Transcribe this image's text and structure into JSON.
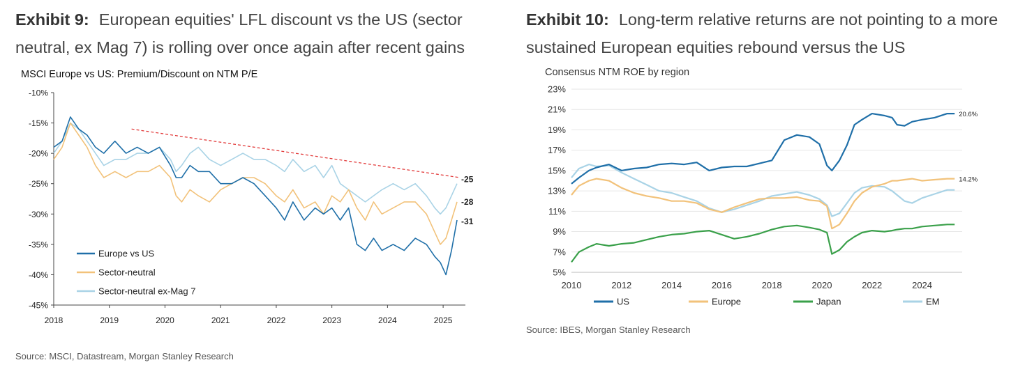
{
  "exhibit9": {
    "label": "Exhibit 9:",
    "title_line1": "European equities' LFL discount vs the US (sector",
    "title_line2": "neutral, ex Mag 7) is rolling over once again after recent gains",
    "source": "Source: MSCI, Datastream, Morgan Stanley Research"
  },
  "exhibit10": {
    "label": "Exhibit 10:",
    "title_line1": "Long-term relative returns are not pointing to a more",
    "title_line2": "sustained European equities rebound versus the US",
    "source": "Source: IBES, Morgan Stanley Research"
  },
  "colors": {
    "us": "#1f6fa8",
    "europe": "#f2c27a",
    "japan": "#3aa04a",
    "em": "#a9d3e6",
    "trend": "#e23b3b"
  },
  "chart_data": [
    {
      "type": "line",
      "title": "MSCI Europe vs US: Premium/Discount on NTM P/E",
      "xlabel": "",
      "ylabel": "",
      "xlim": [
        2018,
        2025.4
      ],
      "ylim": [
        -45,
        -10
      ],
      "y_ticks": [
        -10,
        -15,
        -20,
        -25,
        -30,
        -35,
        -40,
        -45
      ],
      "y_tick_labels": [
        "-10%",
        "-15%",
        "-20%",
        "-25%",
        "-30%",
        "-35%",
        "-40%",
        "-45%"
      ],
      "x_ticks": [
        2018,
        2019,
        2020,
        2021,
        2022,
        2023,
        2024,
        2025
      ],
      "x_tick_labels": [
        "2018",
        "2019",
        "2020",
        "2021",
        "2022",
        "2023",
        "2024",
        "2025"
      ],
      "legend_position": "bottom-left",
      "series": [
        {
          "name": "Europe vs US",
          "color": "#1f6fa8",
          "end_label": "-31",
          "x": [
            2018.0,
            2018.15,
            2018.3,
            2018.45,
            2018.6,
            2018.75,
            2018.9,
            2019.1,
            2019.3,
            2019.5,
            2019.7,
            2019.9,
            2020.1,
            2020.2,
            2020.3,
            2020.45,
            2020.6,
            2020.8,
            2021.0,
            2021.2,
            2021.4,
            2021.6,
            2021.8,
            2022.0,
            2022.15,
            2022.3,
            2022.5,
            2022.7,
            2022.85,
            2023.0,
            2023.15,
            2023.3,
            2023.45,
            2023.6,
            2023.75,
            2023.9,
            2024.1,
            2024.3,
            2024.5,
            2024.7,
            2024.85,
            2024.95,
            2025.05,
            2025.15,
            2025.25
          ],
          "values": [
            -19,
            -18,
            -14,
            -16,
            -17,
            -19,
            -20,
            -18,
            -20,
            -19,
            -20,
            -19,
            -22,
            -24,
            -24,
            -22,
            -23,
            -23,
            -25,
            -25,
            -24,
            -25,
            -27,
            -29,
            -31,
            -28,
            -31,
            -29,
            -30,
            -29,
            -31,
            -29,
            -35,
            -36,
            -34,
            -36,
            -35,
            -36,
            -34,
            -35,
            -37,
            -38,
            -40,
            -36,
            -31
          ]
        },
        {
          "name": "Sector-neutral",
          "color": "#f2c27a",
          "end_label": "-28",
          "x": [
            2018.0,
            2018.15,
            2018.3,
            2018.45,
            2018.6,
            2018.75,
            2018.9,
            2019.1,
            2019.3,
            2019.5,
            2019.7,
            2019.9,
            2020.1,
            2020.2,
            2020.3,
            2020.45,
            2020.6,
            2020.8,
            2021.0,
            2021.2,
            2021.4,
            2021.6,
            2021.8,
            2022.0,
            2022.15,
            2022.3,
            2022.5,
            2022.7,
            2022.85,
            2023.0,
            2023.15,
            2023.3,
            2023.45,
            2023.6,
            2023.75,
            2023.9,
            2024.1,
            2024.3,
            2024.5,
            2024.7,
            2024.85,
            2024.95,
            2025.05,
            2025.15,
            2025.25
          ],
          "values": [
            -21,
            -19,
            -15,
            -17,
            -19,
            -22,
            -24,
            -23,
            -24,
            -23,
            -23,
            -22,
            -24,
            -27,
            -28,
            -26,
            -27,
            -28,
            -26,
            -25,
            -24,
            -24,
            -25,
            -27,
            -28,
            -26,
            -29,
            -28,
            -30,
            -27,
            -28,
            -26,
            -29,
            -31,
            -28,
            -30,
            -29,
            -28,
            -28,
            -30,
            -33,
            -35,
            -34,
            -31,
            -28
          ]
        },
        {
          "name": "Sector-neutral ex-Mag 7",
          "color": "#a9d3e6",
          "end_label": "-25",
          "x": [
            2018.0,
            2018.15,
            2018.3,
            2018.45,
            2018.6,
            2018.75,
            2018.9,
            2019.1,
            2019.3,
            2019.5,
            2019.7,
            2019.9,
            2020.1,
            2020.2,
            2020.3,
            2020.45,
            2020.6,
            2020.8,
            2021.0,
            2021.2,
            2021.4,
            2021.6,
            2021.8,
            2022.0,
            2022.15,
            2022.3,
            2022.5,
            2022.7,
            2022.85,
            2023.0,
            2023.15,
            2023.3,
            2023.45,
            2023.6,
            2023.75,
            2023.9,
            2024.1,
            2024.3,
            2024.5,
            2024.7,
            2024.85,
            2024.95,
            2025.05,
            2025.15,
            2025.25
          ],
          "values": [
            -20,
            -18,
            -15,
            -16,
            -18,
            -20,
            -22,
            -21,
            -21,
            -20,
            -20,
            -19,
            -21,
            -23,
            -22,
            -20,
            -19,
            -21,
            -22,
            -21,
            -20,
            -21,
            -21,
            -22,
            -23,
            -21,
            -23,
            -22,
            -24,
            -22,
            -25,
            -26,
            -27,
            -28,
            -27,
            -26,
            -25,
            -26,
            -25,
            -27,
            -29,
            -30,
            -29,
            -27,
            -25
          ]
        }
      ],
      "trendline": {
        "name": "Trend",
        "color": "#e23b3b",
        "x": [
          2019.4,
          2025.3
        ],
        "values": [
          -16,
          -24
        ]
      }
    },
    {
      "type": "line",
      "title": "Consensus NTM ROE by region",
      "xlabel": "",
      "ylabel": "",
      "xlim": [
        2010,
        2025.6
      ],
      "ylim": [
        5,
        23
      ],
      "y_ticks": [
        23,
        21,
        19,
        17,
        15,
        13,
        11,
        9,
        7,
        5
      ],
      "y_tick_labels": [
        "23%",
        "21%",
        "19%",
        "17%",
        "15%",
        "13%",
        "11%",
        "9%",
        "7%",
        "5%"
      ],
      "x_ticks": [
        2010,
        2012,
        2014,
        2016,
        2018,
        2020,
        2022,
        2024
      ],
      "x_tick_labels": [
        "2010",
        "2012",
        "2014",
        "2016",
        "2018",
        "2020",
        "2022",
        "2024"
      ],
      "legend_position": "bottom",
      "series": [
        {
          "name": "US",
          "color": "#1f6fa8",
          "end_label": "20.6%",
          "x": [
            2010.0,
            2010.3,
            2010.7,
            2011.0,
            2011.5,
            2012.0,
            2012.5,
            2013.0,
            2013.5,
            2014.0,
            2014.5,
            2015.0,
            2015.5,
            2016.0,
            2016.5,
            2017.0,
            2017.5,
            2018.0,
            2018.5,
            2019.0,
            2019.5,
            2019.9,
            2020.2,
            2020.4,
            2020.7,
            2021.0,
            2021.3,
            2021.6,
            2022.0,
            2022.5,
            2022.8,
            2023.0,
            2023.3,
            2023.6,
            2024.0,
            2024.5,
            2025.0,
            2025.3
          ],
          "values": [
            13.7,
            14.3,
            15.0,
            15.3,
            15.6,
            15.0,
            15.2,
            15.3,
            15.6,
            15.7,
            15.6,
            15.8,
            15.0,
            15.3,
            15.4,
            15.4,
            15.7,
            16.0,
            18.0,
            18.5,
            18.3,
            17.6,
            15.5,
            15.0,
            16.0,
            17.5,
            19.5,
            20.0,
            20.6,
            20.4,
            20.2,
            19.5,
            19.4,
            19.8,
            20.0,
            20.2,
            20.6,
            20.6
          ]
        },
        {
          "name": "Europe",
          "color": "#f2c27a",
          "end_label": "14.2%",
          "x": [
            2010.0,
            2010.3,
            2010.7,
            2011.0,
            2011.5,
            2012.0,
            2012.5,
            2013.0,
            2013.5,
            2014.0,
            2014.5,
            2015.0,
            2015.5,
            2016.0,
            2016.5,
            2017.0,
            2017.5,
            2018.0,
            2018.5,
            2019.0,
            2019.5,
            2019.9,
            2020.2,
            2020.4,
            2020.7,
            2021.0,
            2021.3,
            2021.6,
            2022.0,
            2022.5,
            2022.8,
            2023.0,
            2023.3,
            2023.6,
            2024.0,
            2024.5,
            2025.0,
            2025.3
          ],
          "values": [
            12.6,
            13.5,
            14.0,
            14.2,
            14.0,
            13.3,
            12.8,
            12.5,
            12.3,
            12.0,
            12.0,
            11.8,
            11.2,
            10.9,
            11.4,
            11.8,
            12.2,
            12.3,
            12.3,
            12.4,
            12.1,
            12.0,
            11.5,
            9.3,
            9.7,
            10.8,
            12.0,
            12.8,
            13.4,
            13.7,
            14.0,
            14.0,
            14.1,
            14.2,
            14.0,
            14.1,
            14.2,
            14.2
          ]
        },
        {
          "name": "Japan",
          "color": "#3aa04a",
          "x": [
            2010.0,
            2010.3,
            2010.7,
            2011.0,
            2011.5,
            2012.0,
            2012.5,
            2013.0,
            2013.5,
            2014.0,
            2014.5,
            2015.0,
            2015.5,
            2016.0,
            2016.5,
            2017.0,
            2017.5,
            2018.0,
            2018.5,
            2019.0,
            2019.5,
            2019.9,
            2020.2,
            2020.4,
            2020.7,
            2021.0,
            2021.3,
            2021.6,
            2022.0,
            2022.5,
            2022.8,
            2023.0,
            2023.3,
            2023.6,
            2024.0,
            2024.5,
            2025.0,
            2025.3
          ],
          "values": [
            6.0,
            7.0,
            7.5,
            7.8,
            7.6,
            7.8,
            7.9,
            8.2,
            8.5,
            8.7,
            8.8,
            9.0,
            9.1,
            8.7,
            8.3,
            8.5,
            8.8,
            9.2,
            9.5,
            9.6,
            9.4,
            9.2,
            8.9,
            6.8,
            7.2,
            8.0,
            8.5,
            8.9,
            9.1,
            9.0,
            9.1,
            9.2,
            9.3,
            9.3,
            9.5,
            9.6,
            9.7,
            9.7
          ]
        },
        {
          "name": "EM",
          "color": "#a9d3e6",
          "x": [
            2010.0,
            2010.3,
            2010.7,
            2011.0,
            2011.5,
            2012.0,
            2012.5,
            2013.0,
            2013.5,
            2014.0,
            2014.5,
            2015.0,
            2015.5,
            2016.0,
            2016.5,
            2017.0,
            2017.5,
            2018.0,
            2018.5,
            2019.0,
            2019.5,
            2019.9,
            2020.2,
            2020.4,
            2020.7,
            2021.0,
            2021.3,
            2021.6,
            2022.0,
            2022.5,
            2022.8,
            2023.0,
            2023.3,
            2023.6,
            2024.0,
            2024.5,
            2025.0,
            2025.3
          ],
          "values": [
            14.3,
            15.2,
            15.6,
            15.4,
            15.5,
            14.8,
            14.2,
            13.6,
            13.0,
            12.8,
            12.4,
            12.0,
            11.3,
            10.9,
            11.2,
            11.6,
            12.0,
            12.5,
            12.7,
            12.9,
            12.6,
            12.2,
            11.6,
            10.5,
            10.8,
            11.8,
            12.8,
            13.3,
            13.5,
            13.4,
            13.0,
            12.6,
            12.0,
            11.8,
            12.3,
            12.7,
            13.1,
            13.1
          ]
        }
      ]
    }
  ]
}
